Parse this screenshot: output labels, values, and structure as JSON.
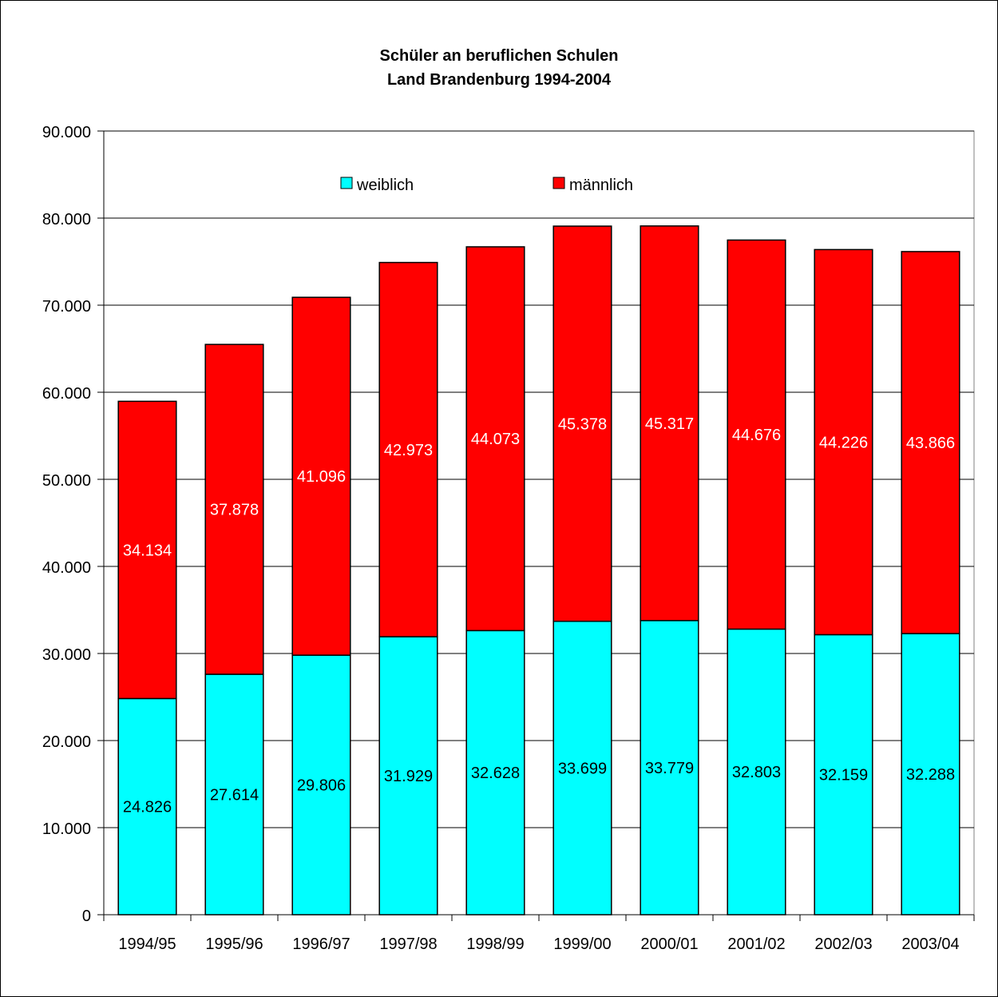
{
  "chart_data": {
    "type": "bar",
    "stacked": true,
    "title": "Schüler an beruflichen Schulen",
    "subtitle": "Land Brandenburg 1994-2004",
    "xlabel": "",
    "ylabel": "",
    "categories": [
      "1994/95",
      "1995/96",
      "1996/97",
      "1997/98",
      "1998/99",
      "1999/00",
      "2000/01",
      "2001/02",
      "2002/03",
      "2003/04"
    ],
    "series": [
      {
        "name": "weiblich",
        "color": "#00FFFF",
        "label_color": "#000000",
        "values": [
          24826,
          27614,
          29806,
          31929,
          32628,
          33699,
          33779,
          32803,
          32159,
          32288
        ],
        "labels": [
          "24.826",
          "27.614",
          "29.806",
          "31.929",
          "32.628",
          "33.699",
          "33.779",
          "32.803",
          "32.159",
          "32.288"
        ]
      },
      {
        "name": "männlich",
        "color": "#FF0000",
        "label_color": "#FFFFFF",
        "values": [
          34134,
          37878,
          41096,
          42973,
          44073,
          45378,
          45317,
          44676,
          44226,
          43866
        ],
        "labels": [
          "34.134",
          "37.878",
          "41.096",
          "42.973",
          "44.073",
          "45.378",
          "45.317",
          "44.676",
          "44.226",
          "43.866"
        ]
      }
    ],
    "ylim": [
      0,
      90000
    ],
    "y_ticks": [
      0,
      10000,
      20000,
      30000,
      40000,
      50000,
      60000,
      70000,
      80000,
      90000
    ],
    "y_tick_labels": [
      "0",
      "10.000",
      "20.000",
      "30.000",
      "40.000",
      "50.000",
      "60.000",
      "70.000",
      "80.000",
      "90.000"
    ],
    "grid": true,
    "legend_position": "top-center"
  }
}
